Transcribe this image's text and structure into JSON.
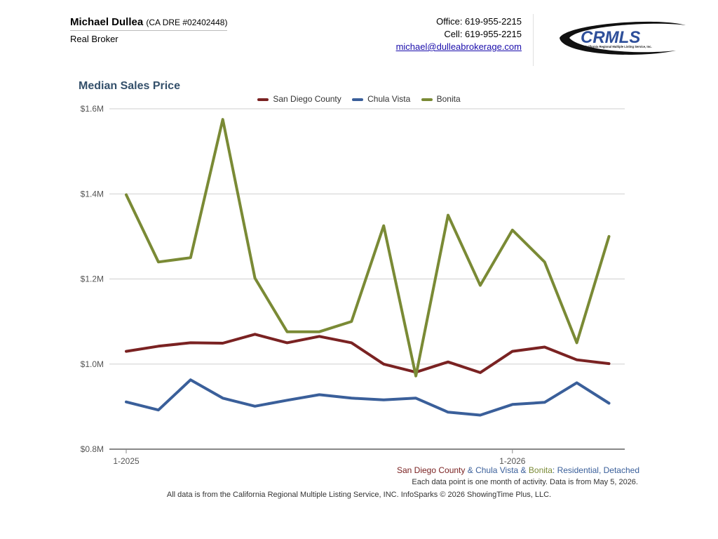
{
  "agent": {
    "name": "Michael Dullea",
    "dre": "(CA DRE #02402448)",
    "title": "Real Broker"
  },
  "contact": {
    "office": "Office: 619-955-2215",
    "cell": "Cell: 619-955-2215",
    "email": "michael@dulleabrokerage.com"
  },
  "logo": {
    "text": "CRMLS",
    "subtext": "California Regional Multiple Listing Service, Inc."
  },
  "caption": {
    "parts": [
      {
        "text": "San Diego County",
        "color": "#7a2222"
      },
      {
        "text": " & ",
        "color": "#3a5f9a"
      },
      {
        "text": "Chula Vista",
        "color": "#3a5f9a"
      },
      {
        "text": " & ",
        "color": "#3a5f9a"
      },
      {
        "text": "Bonita",
        "color": "#7a8a35"
      },
      {
        "text": ": Residential, Detached",
        "color": "#3a5f9a"
      }
    ],
    "note": "Each data point is one month of activity. Data is from May 5, 2026.",
    "source": "All data is from the California Regional Multiple Listing Service, INC. InfoSparks © 2026 ShowingTime Plus, LLC."
  },
  "chart_data": {
    "type": "line",
    "title": "Median Sales Price",
    "xlabel": "",
    "ylabel": "",
    "x": [
      "2025-01",
      "2025-02",
      "2025-03",
      "2025-04",
      "2025-05",
      "2025-06",
      "2025-07",
      "2025-08",
      "2025-09",
      "2025-10",
      "2025-11",
      "2025-12",
      "2026-01",
      "2026-02",
      "2026-03",
      "2026-04"
    ],
    "x_tick_labels": [
      {
        "label": "1-2025",
        "x": "2025-01"
      },
      {
        "label": "1-2026",
        "x": "2026-01"
      }
    ],
    "ylim": [
      800000,
      1600000
    ],
    "y_ticks": [
      {
        "value": 800000,
        "label": "$0.8M"
      },
      {
        "value": 1000000,
        "label": "$1.0M"
      },
      {
        "value": 1200000,
        "label": "$1.2M"
      },
      {
        "value": 1400000,
        "label": "$1.4M"
      },
      {
        "value": 1600000,
        "label": "$1.6M"
      }
    ],
    "grid": true,
    "legend_position": "top",
    "series": [
      {
        "name": "San Diego County",
        "color": "#7a2222",
        "values": [
          1030000,
          1042000,
          1050000,
          1049000,
          1070000,
          1050000,
          1065000,
          1050000,
          1000000,
          981000,
          1005000,
          980000,
          1030000,
          1040000,
          1010000,
          1001000
        ]
      },
      {
        "name": "Chula Vista",
        "color": "#3a5f9a",
        "values": [
          911000,
          892000,
          963000,
          920000,
          901000,
          915000,
          928000,
          920000,
          916000,
          920000,
          887000,
          880000,
          905000,
          910000,
          956000,
          908000
        ]
      },
      {
        "name": "Bonita",
        "color": "#7a8a35",
        "values": [
          1398000,
          1240000,
          1250000,
          1575000,
          1202000,
          1076000,
          1076000,
          1100000,
          1325000,
          972000,
          1350000,
          1185000,
          1315000,
          1240000,
          1050000,
          1300000
        ]
      }
    ]
  }
}
